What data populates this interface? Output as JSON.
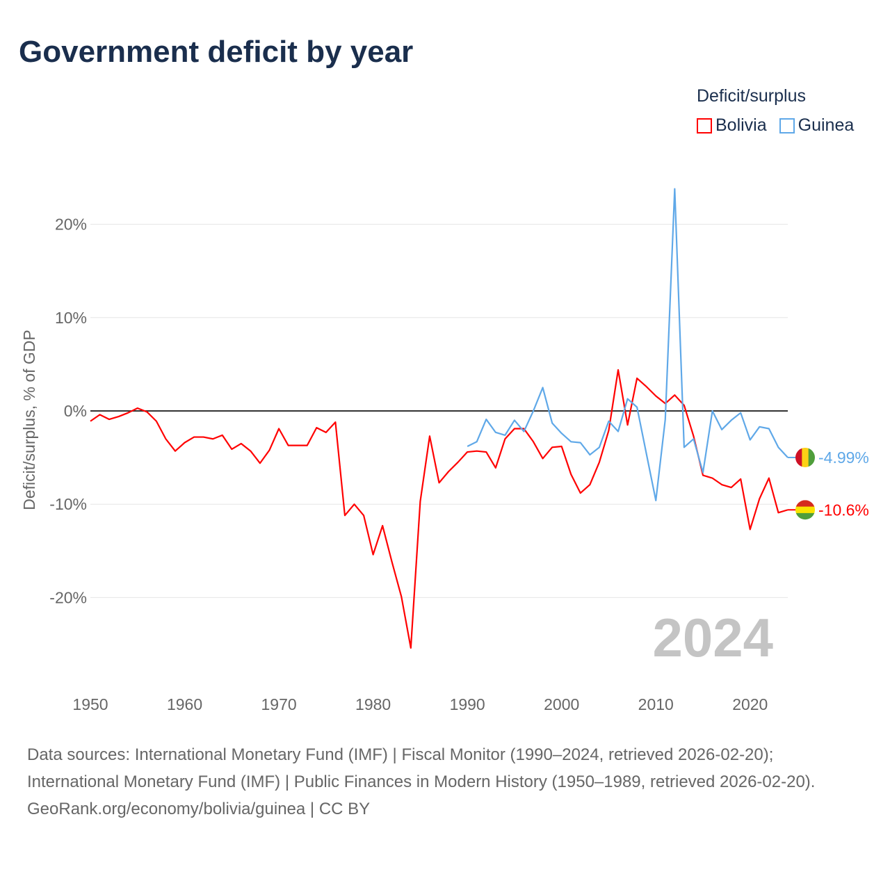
{
  "title": "Government deficit by year",
  "legend_title": "Deficit/surplus",
  "chart_data": {
    "type": "line",
    "title": "Government deficit by year",
    "xlabel": "",
    "ylabel": "Deficit/surplus, % of GDP",
    "xlim": [
      1950,
      2024
    ],
    "ylim": [
      -27,
      25
    ],
    "x_ticks": [
      1950,
      1960,
      1970,
      1980,
      1990,
      2000,
      2010,
      2020
    ],
    "y_ticks": [
      20,
      10,
      0,
      -10,
      -20
    ],
    "y_tick_labels": [
      "20%",
      "10%",
      "0%",
      "-10%",
      "-20%"
    ],
    "grid": true,
    "legend_position": "top-right",
    "year_watermark": "2024",
    "series": [
      {
        "name": "Bolivia",
        "color": "#ff0000",
        "end_label": "-10.6%",
        "start_year": 1950,
        "values": [
          -1.1,
          -0.4,
          -0.9,
          -0.6,
          -0.2,
          0.3,
          -0.1,
          -1.1,
          -3.0,
          -4.3,
          -3.4,
          -2.8,
          -2.8,
          -3.0,
          -2.6,
          -4.1,
          -3.5,
          -4.3,
          -5.6,
          -4.2,
          -1.9,
          -3.7,
          -3.7,
          -3.7,
          -1.8,
          -2.3,
          -1.2,
          -11.2,
          -10.0,
          -11.2,
          -15.4,
          -12.3,
          -16.2,
          -19.9,
          -25.4,
          -9.7,
          -2.7,
          -7.7,
          -6.5,
          -5.5,
          -4.4,
          -4.3,
          -4.4,
          -6.1,
          -3.0,
          -1.9,
          -1.9,
          -3.3,
          -5.1,
          -3.9,
          -3.8,
          -6.8,
          -8.8,
          -7.9,
          -5.5,
          -2.1,
          4.4,
          -1.5,
          3.5,
          2.6,
          1.6,
          0.8,
          1.7,
          0.6,
          -2.7,
          -6.9,
          -7.2,
          -7.9,
          -8.2,
          -7.3,
          -12.7,
          -9.4,
          -7.2,
          -10.9,
          -10.6
        ]
      },
      {
        "name": "Guinea",
        "color": "#5fa8e8",
        "end_label": "-4.99%",
        "start_year": 1990,
        "values": [
          -3.8,
          -3.3,
          -0.9,
          -2.3,
          -2.6,
          -1.0,
          -2.2,
          0.0,
          2.5,
          -1.3,
          -2.4,
          -3.3,
          -3.4,
          -4.7,
          -3.9,
          -1.1,
          -2.2,
          1.3,
          0.4,
          -4.6,
          -9.6,
          -0.9,
          23.8,
          -3.9,
          -3.0,
          -6.6,
          0.0,
          -2.0,
          -1.0,
          -0.2,
          -3.1,
          -1.7,
          -1.9,
          -3.9,
          -4.99
        ]
      }
    ]
  },
  "footer": {
    "sources": "Data sources: International Monetary Fund (IMF) | Fiscal Monitor (1990–2024, retrieved 2026-02-20); International Monetary Fund (IMF) | Public Finances in Modern History (1950–1989, retrieved 2026-02-20).",
    "credit": "GeoRank.org/economy/bolivia/guinea | CC BY"
  }
}
